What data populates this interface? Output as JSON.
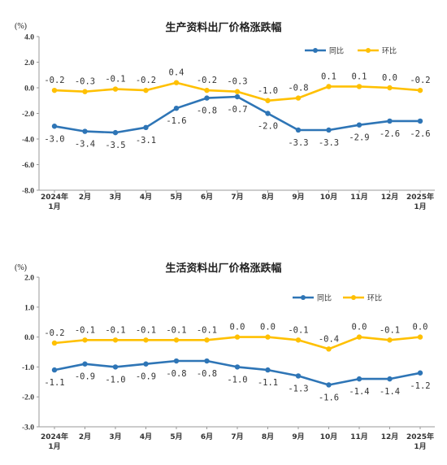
{
  "colors": {
    "yoy": "#2E75B6",
    "mom": "#FFC000",
    "axis": "#999999"
  },
  "chart_data": [
    {
      "type": "line",
      "title": "生产资料出厂价格涨跌幅",
      "unit": "(%)",
      "ylim": [
        -8.0,
        4.0
      ],
      "yticks": [
        "4.0",
        "2.0",
        "0.0",
        "-2.0",
        "-4.0",
        "-6.0",
        "-8.0"
      ],
      "ytick_values": [
        4,
        2,
        0,
        -2,
        -4,
        -6,
        -8
      ],
      "categories": [
        [
          "2024年",
          "1月"
        ],
        [
          "2月"
        ],
        [
          "3月"
        ],
        [
          "4月"
        ],
        [
          "5月"
        ],
        [
          "6月"
        ],
        [
          "7月"
        ],
        [
          "8月"
        ],
        [
          "9月"
        ],
        [
          "10月"
        ],
        [
          "11月"
        ],
        [
          "12月"
        ],
        [
          "2025年",
          "1月"
        ]
      ],
      "legend_position": "top-right",
      "series": [
        {
          "name": "同比",
          "color_key": "yoy",
          "values": [
            -3.0,
            -3.4,
            -3.5,
            -3.1,
            -1.6,
            -0.8,
            -0.7,
            -2.0,
            -3.3,
            -3.3,
            -2.9,
            -2.6,
            -2.6
          ],
          "labels": [
            "-3.0",
            "-3.4",
            "-3.5",
            "-3.1",
            "-1.6",
            "-0.8",
            "-0.7",
            "-2.0",
            "-3.3",
            "-3.3",
            "-2.9",
            "-2.6",
            "-2.6"
          ]
        },
        {
          "name": "环比",
          "color_key": "mom",
          "values": [
            -0.2,
            -0.3,
            -0.1,
            -0.2,
            0.4,
            -0.2,
            -0.3,
            -1.0,
            -0.8,
            0.1,
            0.1,
            0.0,
            -0.2
          ],
          "labels": [
            "-0.2",
            "-0.3",
            "-0.1",
            "-0.2",
            "0.4",
            "-0.2",
            "-0.3",
            "-1.0",
            "-0.8",
            "0.1",
            "0.1",
            "0.0",
            "-0.2"
          ]
        }
      ]
    },
    {
      "type": "line",
      "title": "生活资料出厂价格涨跌幅",
      "unit": "(%)",
      "ylim": [
        -3.0,
        2.0
      ],
      "yticks": [
        "2.0",
        "1.0",
        "0.0",
        "-1.0",
        "-2.0",
        "-3.0"
      ],
      "ytick_values": [
        2,
        1,
        0,
        -1,
        -2,
        -3
      ],
      "categories": [
        [
          "2024年",
          "1月"
        ],
        [
          "2月"
        ],
        [
          "3月"
        ],
        [
          "4月"
        ],
        [
          "5月"
        ],
        [
          "6月"
        ],
        [
          "7月"
        ],
        [
          "8月"
        ],
        [
          "9月"
        ],
        [
          "10月"
        ],
        [
          "11月"
        ],
        [
          "12月"
        ],
        [
          "2025年",
          "1月"
        ]
      ],
      "legend_position": "top-right",
      "series": [
        {
          "name": "同比",
          "color_key": "yoy",
          "values": [
            -1.1,
            -0.9,
            -1.0,
            -0.9,
            -0.8,
            -0.8,
            -1.0,
            -1.1,
            -1.3,
            -1.6,
            -1.4,
            -1.4,
            -1.2
          ],
          "labels": [
            "-1.1",
            "-0.9",
            "-1.0",
            "-0.9",
            "-0.8",
            "-0.8",
            "-1.0",
            "-1.1",
            "-1.3",
            "-1.6",
            "-1.4",
            "-1.4",
            "-1.2"
          ]
        },
        {
          "name": "环比",
          "color_key": "mom",
          "values": [
            -0.2,
            -0.1,
            -0.1,
            -0.1,
            -0.1,
            -0.1,
            0.0,
            0.0,
            -0.1,
            -0.4,
            0.0,
            -0.1,
            0.0
          ],
          "labels": [
            "-0.2",
            "-0.1",
            "-0.1",
            "-0.1",
            "-0.1",
            "-0.1",
            "0.0",
            "0.0",
            "-0.1",
            "-0.4",
            "0.0",
            "-0.1",
            "0.0"
          ]
        }
      ]
    }
  ]
}
